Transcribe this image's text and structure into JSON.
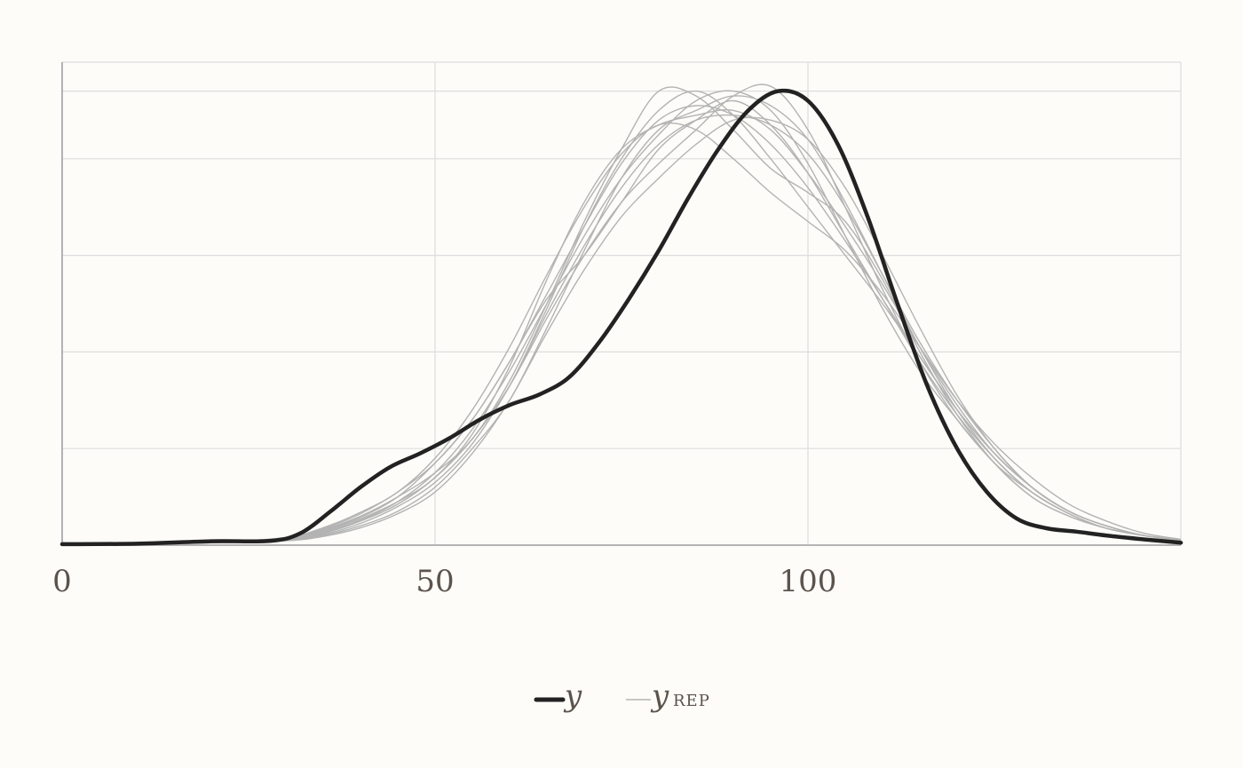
{
  "chart_data": {
    "type": "line",
    "title": "",
    "xlabel": "",
    "ylabel": "",
    "xlim": [
      0,
      150
    ],
    "ylim": [
      0,
      1.0
    ],
    "x_ticks": [
      0,
      50,
      100
    ],
    "x_tick_labels": [
      "0",
      "50",
      "100"
    ],
    "grid": true,
    "legend": {
      "placement": "bottom-center",
      "entries": [
        {
          "label": "y",
          "subscript": "",
          "style": "thick-dark"
        },
        {
          "label": "y",
          "subscript": "REP",
          "style": "thin-gray"
        }
      ]
    },
    "colors": {
      "observed": "#222222",
      "replicated": "#b3b3b3",
      "grid": "#dddddd",
      "axis": "#aaaaaa",
      "background": "#fdfcf9"
    },
    "series": [
      {
        "role": "observed",
        "x": [
          0,
          10,
          20,
          28,
          32,
          36,
          40,
          44,
          48,
          52,
          56,
          60,
          64,
          68,
          72,
          76,
          80,
          84,
          88,
          92,
          96,
          100,
          104,
          108,
          112,
          116,
          120,
          124,
          128,
          132,
          136,
          140,
          145,
          150
        ],
        "values": [
          0.002,
          0.003,
          0.008,
          0.009,
          0.025,
          0.07,
          0.12,
          0.162,
          0.19,
          0.222,
          0.26,
          0.29,
          0.312,
          0.348,
          0.42,
          0.51,
          0.61,
          0.72,
          0.82,
          0.9,
          0.94,
          0.92,
          0.83,
          0.68,
          0.5,
          0.33,
          0.2,
          0.11,
          0.055,
          0.035,
          0.028,
          0.02,
          0.012,
          0.005
        ]
      },
      {
        "role": "replicate",
        "x": [
          0,
          20,
          30,
          35,
          40,
          45,
          50,
          55,
          60,
          65,
          70,
          75,
          80,
          85,
          90,
          95,
          100,
          105,
          110,
          115,
          120,
          125,
          130,
          135,
          140,
          145,
          150
        ],
        "values": [
          0.002,
          0.006,
          0.014,
          0.032,
          0.06,
          0.1,
          0.15,
          0.22,
          0.34,
          0.5,
          0.67,
          0.82,
          0.94,
          0.93,
          0.86,
          0.78,
          0.73,
          0.67,
          0.55,
          0.4,
          0.27,
          0.17,
          0.1,
          0.06,
          0.035,
          0.02,
          0.01
        ]
      },
      {
        "role": "replicate",
        "x": [
          0,
          20,
          30,
          35,
          40,
          45,
          50,
          55,
          60,
          65,
          70,
          75,
          80,
          85,
          90,
          95,
          100,
          105,
          110,
          115,
          120,
          125,
          130,
          135,
          140,
          145,
          150
        ],
        "values": [
          0.002,
          0.006,
          0.012,
          0.028,
          0.055,
          0.09,
          0.14,
          0.23,
          0.37,
          0.55,
          0.71,
          0.82,
          0.87,
          0.89,
          0.9,
          0.86,
          0.77,
          0.66,
          0.54,
          0.41,
          0.29,
          0.19,
          0.12,
          0.07,
          0.04,
          0.02,
          0.01
        ]
      },
      {
        "role": "replicate",
        "x": [
          0,
          20,
          30,
          35,
          40,
          45,
          50,
          55,
          60,
          65,
          70,
          75,
          80,
          85,
          90,
          95,
          100,
          105,
          110,
          115,
          120,
          125,
          130,
          135,
          140,
          145,
          150
        ],
        "values": [
          0.002,
          0.005,
          0.01,
          0.024,
          0.05,
          0.085,
          0.14,
          0.22,
          0.33,
          0.49,
          0.66,
          0.8,
          0.9,
          0.94,
          0.89,
          0.8,
          0.7,
          0.6,
          0.5,
          0.39,
          0.28,
          0.19,
          0.12,
          0.07,
          0.04,
          0.02,
          0.01
        ]
      },
      {
        "role": "replicate",
        "x": [
          0,
          20,
          30,
          35,
          40,
          45,
          50,
          55,
          60,
          65,
          70,
          75,
          80,
          85,
          90,
          95,
          100,
          105,
          110,
          115,
          120,
          125,
          130,
          135,
          140,
          145,
          150
        ],
        "values": [
          0.002,
          0.006,
          0.013,
          0.03,
          0.058,
          0.1,
          0.17,
          0.26,
          0.38,
          0.51,
          0.6,
          0.71,
          0.82,
          0.88,
          0.92,
          0.87,
          0.77,
          0.64,
          0.51,
          0.38,
          0.27,
          0.18,
          0.11,
          0.065,
          0.035,
          0.02,
          0.01
        ]
      },
      {
        "role": "replicate",
        "x": [
          0,
          20,
          30,
          35,
          40,
          45,
          50,
          55,
          60,
          65,
          70,
          75,
          80,
          85,
          90,
          95,
          100,
          105,
          110,
          115,
          120,
          125,
          130,
          135,
          140,
          145,
          150
        ],
        "values": [
          0.002,
          0.005,
          0.01,
          0.02,
          0.04,
          0.07,
          0.12,
          0.2,
          0.3,
          0.45,
          0.61,
          0.76,
          0.86,
          0.9,
          0.93,
          0.91,
          0.84,
          0.71,
          0.56,
          0.41,
          0.28,
          0.18,
          0.11,
          0.065,
          0.035,
          0.02,
          0.01
        ]
      },
      {
        "role": "replicate",
        "x": [
          0,
          20,
          30,
          35,
          40,
          45,
          50,
          55,
          60,
          65,
          70,
          75,
          80,
          85,
          90,
          95,
          100,
          105,
          110,
          115,
          120,
          125,
          130,
          135,
          140,
          145,
          150
        ],
        "values": [
          0.002,
          0.007,
          0.015,
          0.034,
          0.065,
          0.11,
          0.17,
          0.26,
          0.38,
          0.52,
          0.66,
          0.79,
          0.88,
          0.91,
          0.89,
          0.83,
          0.74,
          0.63,
          0.51,
          0.39,
          0.28,
          0.19,
          0.12,
          0.07,
          0.04,
          0.02,
          0.01
        ]
      },
      {
        "role": "replicate",
        "x": [
          0,
          20,
          30,
          35,
          40,
          45,
          50,
          55,
          60,
          65,
          70,
          75,
          80,
          85,
          90,
          95,
          100,
          105,
          110,
          115,
          120,
          125,
          130,
          135,
          140,
          145,
          150
        ],
        "values": [
          0.002,
          0.005,
          0.01,
          0.022,
          0.045,
          0.08,
          0.13,
          0.21,
          0.33,
          0.48,
          0.62,
          0.74,
          0.83,
          0.88,
          0.89,
          0.87,
          0.81,
          0.7,
          0.56,
          0.42,
          0.3,
          0.2,
          0.12,
          0.07,
          0.04,
          0.02,
          0.01
        ]
      },
      {
        "role": "replicate",
        "x": [
          0,
          20,
          30,
          35,
          40,
          45,
          50,
          55,
          60,
          65,
          70,
          75,
          80,
          85,
          90,
          95,
          100,
          105,
          110,
          115,
          120,
          125,
          130,
          135,
          140,
          145,
          150
        ],
        "values": [
          0.002,
          0.006,
          0.012,
          0.026,
          0.052,
          0.09,
          0.15,
          0.24,
          0.36,
          0.5,
          0.64,
          0.76,
          0.85,
          0.92,
          0.94,
          0.9,
          0.79,
          0.64,
          0.49,
          0.36,
          0.26,
          0.17,
          0.11,
          0.065,
          0.035,
          0.02,
          0.01
        ]
      },
      {
        "role": "replicate",
        "x": [
          0,
          20,
          30,
          35,
          40,
          45,
          50,
          55,
          60,
          65,
          70,
          75,
          80,
          85,
          90,
          95,
          100,
          105,
          110,
          115,
          120,
          125,
          130,
          135,
          140,
          145,
          150
        ],
        "values": [
          0.002,
          0.005,
          0.011,
          0.025,
          0.05,
          0.085,
          0.14,
          0.22,
          0.33,
          0.47,
          0.6,
          0.71,
          0.79,
          0.86,
          0.93,
          0.95,
          0.86,
          0.7,
          0.53,
          0.38,
          0.26,
          0.17,
          0.1,
          0.06,
          0.035,
          0.02,
          0.01
        ]
      },
      {
        "role": "replicate",
        "x": [
          0,
          20,
          30,
          35,
          40,
          45,
          50,
          55,
          60,
          65,
          70,
          75,
          80,
          85,
          90,
          95,
          100,
          105,
          110,
          115,
          120,
          125,
          130,
          135,
          140,
          145,
          150
        ],
        "values": [
          0.002,
          0.007,
          0.016,
          0.036,
          0.068,
          0.11,
          0.18,
          0.28,
          0.41,
          0.56,
          0.7,
          0.81,
          0.87,
          0.86,
          0.8,
          0.73,
          0.67,
          0.61,
          0.52,
          0.41,
          0.3,
          0.21,
          0.14,
          0.085,
          0.05,
          0.025,
          0.012
        ]
      },
      {
        "role": "replicate",
        "x": [
          0,
          20,
          30,
          35,
          40,
          45,
          50,
          55,
          60,
          65,
          70,
          75,
          80,
          85,
          90,
          95,
          100,
          105,
          110,
          115,
          120,
          125,
          130,
          135,
          140,
          145,
          150
        ],
        "values": [
          0.002,
          0.005,
          0.009,
          0.018,
          0.036,
          0.065,
          0.11,
          0.19,
          0.3,
          0.44,
          0.57,
          0.68,
          0.76,
          0.83,
          0.88,
          0.88,
          0.84,
          0.74,
          0.6,
          0.45,
          0.31,
          0.2,
          0.12,
          0.07,
          0.04,
          0.02,
          0.01
        ]
      }
    ]
  }
}
